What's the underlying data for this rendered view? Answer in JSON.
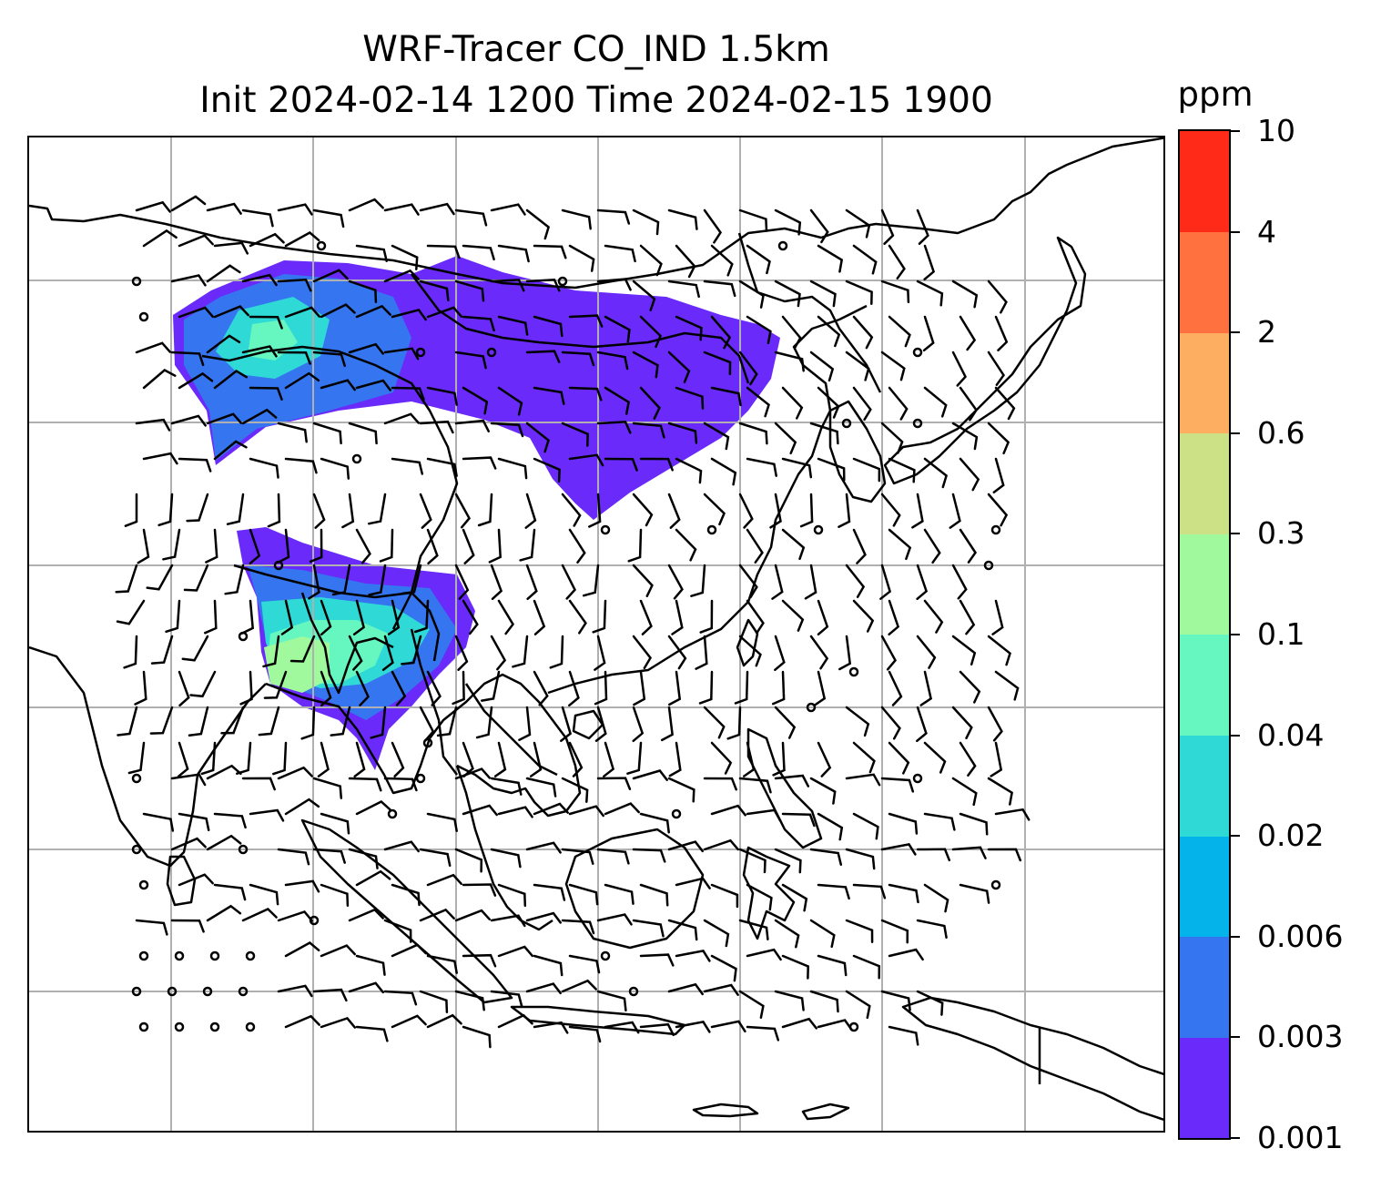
{
  "title": {
    "line1": "WRF-Tracer CO_IND 1.5km",
    "line2": "Init 2024-02-14 1200 Time 2024-02-15 1900"
  },
  "colorbar": {
    "unit": "ppm",
    "levels": [
      "0.001",
      "0.003",
      "0.006",
      "0.02",
      "0.04",
      "0.1",
      "0.3",
      "0.6",
      "2",
      "4",
      "10"
    ],
    "colors": [
      "#6a2afa",
      "#3575f0",
      "#04b3ea",
      "#2fdad6",
      "#66f7c0",
      "#a0f99c",
      "#cce086",
      "#fdae61",
      "#ff7240",
      "#ff2a17"
    ]
  },
  "map": {
    "gridlines": true,
    "features": [
      "coastlines",
      "country-borders",
      "wind-barbs",
      "co-tracer-concentration"
    ]
  }
}
